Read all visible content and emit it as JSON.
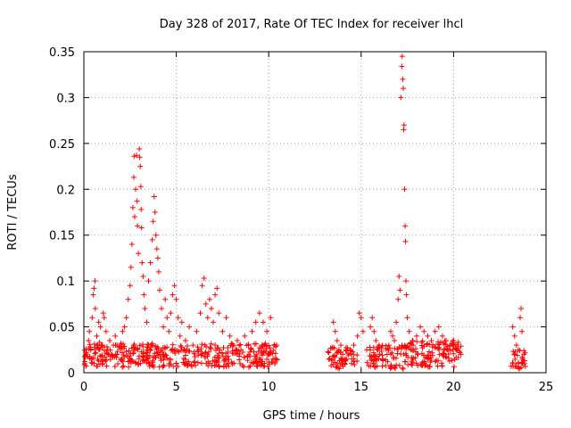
{
  "chart_data": {
    "type": "scatter",
    "title": "Day 328 of 2017, Rate Of TEC Index for receiver lhcl",
    "xlabel": "GPS time / hours",
    "ylabel": "ROTI / TECUs",
    "xlim": [
      0,
      25
    ],
    "ylim": [
      0,
      0.35
    ],
    "x_ticks": [
      0,
      5,
      10,
      15,
      20,
      25
    ],
    "y_ticks": [
      0,
      0.05,
      0.1,
      0.15,
      0.2,
      0.25,
      0.3,
      0.35
    ],
    "x_tick_labels": [
      "0",
      "5",
      "10",
      "15",
      "20",
      "25"
    ],
    "y_tick_labels": [
      "0",
      "0.05",
      "0.1",
      "0.15",
      "0.2",
      "0.25",
      "0.3",
      "0.35"
    ],
    "grid": true,
    "marker": "+",
    "marker_color": "#ff0000",
    "series": [
      {
        "name": "ROTI",
        "points": [
          [
            0.05,
            0.01
          ],
          [
            0.12,
            0.022
          ],
          [
            0.2,
            0.018
          ],
          [
            0.25,
            0.035
          ],
          [
            0.3,
            0.045
          ],
          [
            0.35,
            0.028
          ],
          [
            0.4,
            0.015
          ],
          [
            0.45,
            0.06
          ],
          [
            0.5,
            0.085
          ],
          [
            0.55,
            0.092
          ],
          [
            0.6,
            0.1
          ],
          [
            0.62,
            0.07
          ],
          [
            0.7,
            0.04
          ],
          [
            0.8,
            0.055
          ],
          [
            0.85,
            0.033
          ],
          [
            0.9,
            0.05
          ],
          [
            1.0,
            0.03
          ],
          [
            1.05,
            0.065
          ],
          [
            1.1,
            0.06
          ],
          [
            1.2,
            0.045
          ],
          [
            1.3,
            0.025
          ],
          [
            1.4,
            0.035
          ],
          [
            1.5,
            0.02
          ],
          [
            1.6,
            0.03
          ],
          [
            1.7,
            0.04
          ],
          [
            1.8,
            0.02
          ],
          [
            1.9,
            0.028
          ],
          [
            2.0,
            0.032
          ],
          [
            2.1,
            0.045
          ],
          [
            2.2,
            0.05
          ],
          [
            2.3,
            0.06
          ],
          [
            2.4,
            0.08
          ],
          [
            2.5,
            0.095
          ],
          [
            2.55,
            0.115
          ],
          [
            2.6,
            0.14
          ],
          [
            2.65,
            0.18
          ],
          [
            2.7,
            0.213
          ],
          [
            2.72,
            0.236
          ],
          [
            2.75,
            0.17
          ],
          [
            2.8,
            0.2
          ],
          [
            2.85,
            0.237
          ],
          [
            2.88,
            0.187
          ],
          [
            2.9,
            0.16
          ],
          [
            2.95,
            0.13
          ],
          [
            3.0,
            0.244
          ],
          [
            3.02,
            0.235
          ],
          [
            3.05,
            0.225
          ],
          [
            3.08,
            0.203
          ],
          [
            3.1,
            0.178
          ],
          [
            3.12,
            0.158
          ],
          [
            3.15,
            0.12
          ],
          [
            3.2,
            0.105
          ],
          [
            3.25,
            0.085
          ],
          [
            3.3,
            0.07
          ],
          [
            3.4,
            0.055
          ],
          [
            3.5,
            0.1
          ],
          [
            3.6,
            0.12
          ],
          [
            3.7,
            0.145
          ],
          [
            3.75,
            0.165
          ],
          [
            3.8,
            0.192
          ],
          [
            3.85,
            0.175
          ],
          [
            3.9,
            0.15
          ],
          [
            3.95,
            0.135
          ],
          [
            4.0,
            0.125
          ],
          [
            4.05,
            0.11
          ],
          [
            4.1,
            0.09
          ],
          [
            4.2,
            0.07
          ],
          [
            4.3,
            0.05
          ],
          [
            4.4,
            0.08
          ],
          [
            4.5,
            0.06
          ],
          [
            4.6,
            0.045
          ],
          [
            4.7,
            0.065
          ],
          [
            4.8,
            0.085
          ],
          [
            4.9,
            0.095
          ],
          [
            5.0,
            0.08
          ],
          [
            5.1,
            0.06
          ],
          [
            5.2,
            0.04
          ],
          [
            5.3,
            0.055
          ],
          [
            5.5,
            0.035
          ],
          [
            5.7,
            0.05
          ],
          [
            5.9,
            0.03
          ],
          [
            6.1,
            0.045
          ],
          [
            6.3,
            0.065
          ],
          [
            6.4,
            0.095
          ],
          [
            6.5,
            0.103
          ],
          [
            6.6,
            0.075
          ],
          [
            6.7,
            0.06
          ],
          [
            6.8,
            0.08
          ],
          [
            6.9,
            0.07
          ],
          [
            7.0,
            0.055
          ],
          [
            7.1,
            0.085
          ],
          [
            7.2,
            0.092
          ],
          [
            7.3,
            0.065
          ],
          [
            7.5,
            0.045
          ],
          [
            7.7,
            0.06
          ],
          [
            7.9,
            0.04
          ],
          [
            8.1,
            0.03
          ],
          [
            8.3,
            0.035
          ],
          [
            8.5,
            0.025
          ],
          [
            8.7,
            0.04
          ],
          [
            8.9,
            0.03
          ],
          [
            9.1,
            0.045
          ],
          [
            9.3,
            0.055
          ],
          [
            9.5,
            0.065
          ],
          [
            9.7,
            0.055
          ],
          [
            9.9,
            0.045
          ],
          [
            10.1,
            0.06
          ],
          [
            10.3,
            0.03
          ],
          [
            10.4,
            0.015
          ],
          [
            13.5,
            0.055
          ],
          [
            13.6,
            0.045
          ],
          [
            13.7,
            0.035
          ],
          [
            13.8,
            0.025
          ],
          [
            13.9,
            0.03
          ],
          [
            14.0,
            0.02
          ],
          [
            14.2,
            0.015
          ],
          [
            14.4,
            0.025
          ],
          [
            14.6,
            0.03
          ],
          [
            14.8,
            0.04
          ],
          [
            14.9,
            0.065
          ],
          [
            15.0,
            0.06
          ],
          [
            15.1,
            0.045
          ],
          [
            15.3,
            0.025
          ],
          [
            15.5,
            0.05
          ],
          [
            15.6,
            0.06
          ],
          [
            15.7,
            0.045
          ],
          [
            15.8,
            0.035
          ],
          [
            15.9,
            0.025
          ],
          [
            16.0,
            0.02
          ],
          [
            16.5,
            0.03
          ],
          [
            16.6,
            0.045
          ],
          [
            16.7,
            0.04
          ],
          [
            16.8,
            0.035
          ],
          [
            16.9,
            0.055
          ],
          [
            17.0,
            0.08
          ],
          [
            17.05,
            0.105
          ],
          [
            17.1,
            0.09
          ],
          [
            17.15,
            0.3
          ],
          [
            17.2,
            0.334
          ],
          [
            17.22,
            0.345
          ],
          [
            17.25,
            0.32
          ],
          [
            17.28,
            0.31
          ],
          [
            17.3,
            0.265
          ],
          [
            17.32,
            0.27
          ],
          [
            17.35,
            0.2
          ],
          [
            17.38,
            0.16
          ],
          [
            17.4,
            0.143
          ],
          [
            17.42,
            0.1
          ],
          [
            17.45,
            0.085
          ],
          [
            17.5,
            0.06
          ],
          [
            17.6,
            0.045
          ],
          [
            17.8,
            0.035
          ],
          [
            18.0,
            0.04
          ],
          [
            18.2,
            0.05
          ],
          [
            18.4,
            0.045
          ],
          [
            18.6,
            0.04
          ],
          [
            18.8,
            0.035
          ],
          [
            19.0,
            0.045
          ],
          [
            19.2,
            0.05
          ],
          [
            19.4,
            0.04
          ],
          [
            19.6,
            0.035
          ],
          [
            19.8,
            0.03
          ],
          [
            20.0,
            0.035
          ],
          [
            20.2,
            0.025
          ],
          [
            20.4,
            0.02
          ],
          [
            23.2,
            0.05
          ],
          [
            23.3,
            0.04
          ],
          [
            23.4,
            0.03
          ],
          [
            23.5,
            0.025
          ],
          [
            23.6,
            0.06
          ],
          [
            23.65,
            0.07
          ],
          [
            23.7,
            0.045
          ],
          [
            23.8,
            0.02
          ]
        ]
      }
    ],
    "dense_segments": [
      {
        "x0": 0.0,
        "x1": 10.5,
        "y_low": 0.006,
        "y_high": 0.032,
        "count": 420
      },
      {
        "x0": 13.2,
        "x1": 14.8,
        "y_low": 0.004,
        "y_high": 0.028,
        "count": 60
      },
      {
        "x0": 15.3,
        "x1": 16.2,
        "y_low": 0.006,
        "y_high": 0.03,
        "count": 40
      },
      {
        "x0": 16.3,
        "x1": 17.6,
        "y_low": 0.004,
        "y_high": 0.03,
        "count": 50
      },
      {
        "x0": 17.6,
        "x1": 20.4,
        "y_low": 0.006,
        "y_high": 0.035,
        "count": 120
      },
      {
        "x0": 23.1,
        "x1": 23.9,
        "y_low": 0.004,
        "y_high": 0.025,
        "count": 30
      }
    ]
  }
}
